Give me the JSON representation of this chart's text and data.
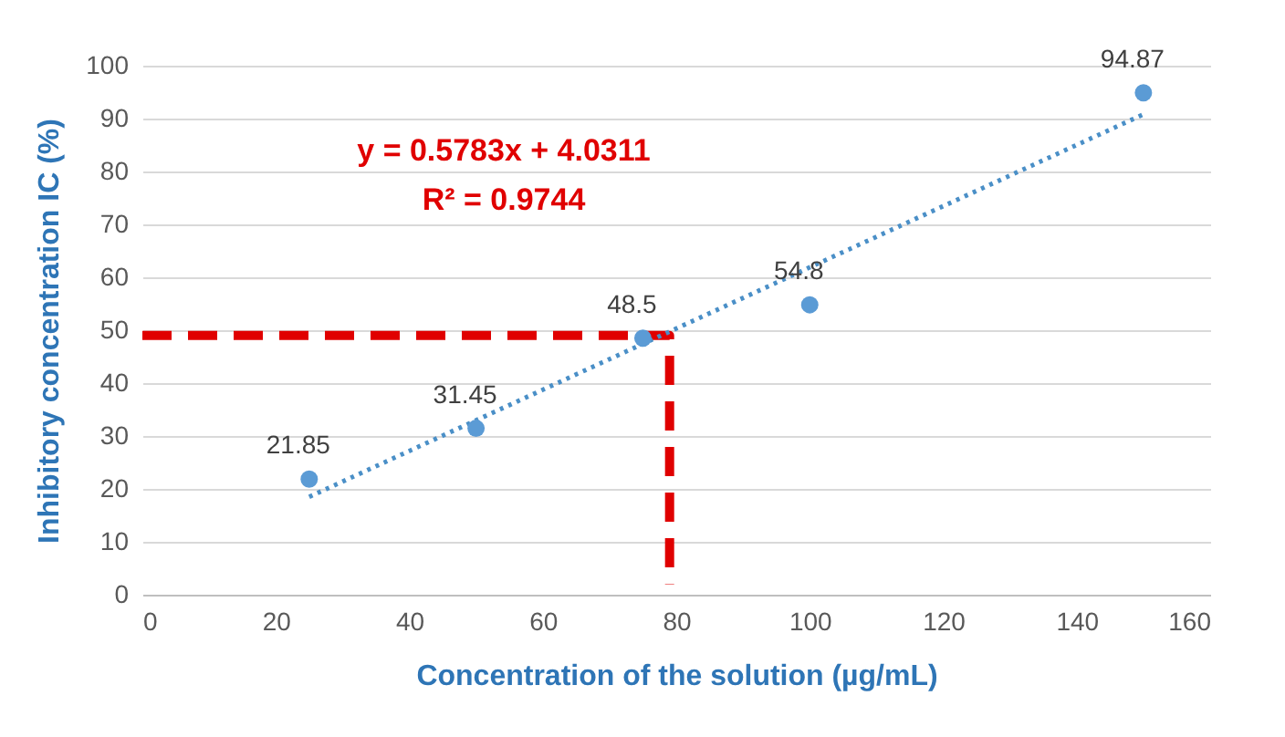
{
  "chart_data": {
    "type": "scatter",
    "xlabel": "Concentration of the solution (µg/mL)",
    "ylabel": "Inhibitory concentration IC (%)",
    "annotations": [
      "y = 0.5783x + 4.0311",
      "R² = 0.9744"
    ],
    "xlim": [
      0,
      160
    ],
    "xticks": [
      0,
      20,
      40,
      60,
      80,
      100,
      120,
      140,
      160
    ],
    "ylim": [
      0,
      100
    ],
    "yticks": [
      0,
      10,
      20,
      30,
      40,
      50,
      60,
      70,
      80,
      90,
      100
    ],
    "grid": "y",
    "series": [
      {
        "type": "line",
        "color": "#e00000",
        "line_style": "dashed",
        "x": [
          0,
          79,
          79
        ],
        "values": [
          49,
          49,
          2
        ]
      },
      {
        "type": "line",
        "color": "#4a8fc7",
        "line_style": "dotted",
        "x": [
          25,
          150
        ],
        "values": [
          18.5,
          90.8
        ]
      },
      {
        "color": "#5b9bd5",
        "marker": "circle",
        "x": [
          25,
          50,
          75,
          100,
          150
        ],
        "values": [
          21.85,
          31.45,
          48.5,
          54.8,
          94.87
        ],
        "value_labels": [
          "21.85",
          "31.45",
          "48.5",
          "54.8",
          "94.87"
        ]
      }
    ]
  }
}
